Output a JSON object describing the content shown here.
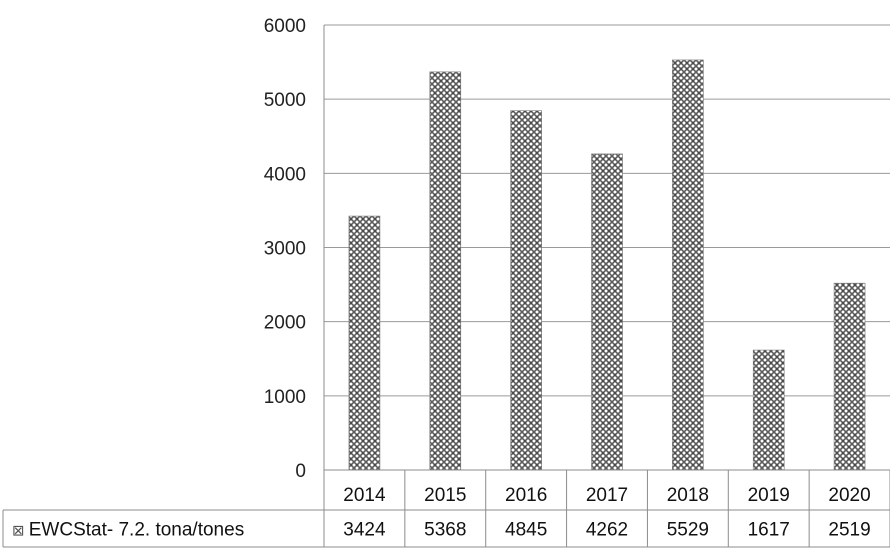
{
  "chart_data": {
    "type": "bar",
    "categories": [
      "2014",
      "2015",
      "2016",
      "2017",
      "2018",
      "2019",
      "2020"
    ],
    "series": [
      {
        "name": "EWCStat- 7.2. tona/tones",
        "values": [
          3424,
          5368,
          4845,
          4262,
          5529,
          1617,
          2519
        ]
      }
    ],
    "ylim": [
      0,
      6000
    ],
    "yticks": [
      "0",
      "1000",
      "2000",
      "3000",
      "4000",
      "5000",
      "6000"
    ],
    "grid": true,
    "legend": "data-table",
    "colors": {
      "bar_dark": "#6e6e6e",
      "bar_light": "#ffffff",
      "grid": "#9a9a9a",
      "border": "#8c8c8c"
    },
    "legend_symbol": "⊠"
  }
}
